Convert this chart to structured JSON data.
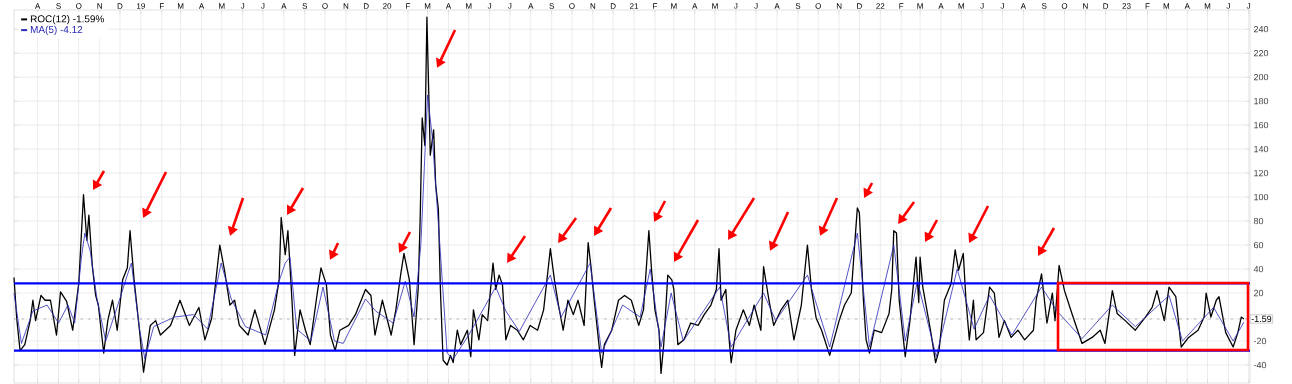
{
  "chart_data": {
    "type": "line",
    "legend": "top left",
    "grid": true,
    "xlim": [
      "2018-06-27",
      "2023-07-03"
    ],
    "ylim": [
      -55,
      256
    ],
    "yticks": [
      -40,
      -20,
      20,
      40,
      60,
      80,
      100,
      120,
      140,
      160,
      180,
      200,
      220,
      240
    ],
    "xticks": [
      {
        "value": "2018-08-01",
        "label": "A"
      },
      {
        "value": "2018-09-01",
        "label": "S"
      },
      {
        "value": "2018-10-01",
        "label": "O"
      },
      {
        "value": "2018-11-01",
        "label": "N"
      },
      {
        "value": "2018-12-01",
        "label": "D"
      },
      {
        "value": "2019-01-01",
        "label": "19"
      },
      {
        "value": "2019-02-01",
        "label": "F"
      },
      {
        "value": "2019-03-01",
        "label": "M"
      },
      {
        "value": "2019-04-01",
        "label": "A"
      },
      {
        "value": "2019-05-01",
        "label": "M"
      },
      {
        "value": "2019-06-01",
        "label": "J"
      },
      {
        "value": "2019-07-01",
        "label": "J"
      },
      {
        "value": "2019-08-01",
        "label": "A"
      },
      {
        "value": "2019-09-01",
        "label": "S"
      },
      {
        "value": "2019-10-01",
        "label": "O"
      },
      {
        "value": "2019-11-01",
        "label": "N"
      },
      {
        "value": "2019-12-01",
        "label": "D"
      },
      {
        "value": "2020-01-01",
        "label": "20"
      },
      {
        "value": "2020-02-01",
        "label": "F"
      },
      {
        "value": "2020-03-01",
        "label": "M"
      },
      {
        "value": "2020-04-01",
        "label": "A"
      },
      {
        "value": "2020-05-01",
        "label": "M"
      },
      {
        "value": "2020-06-01",
        "label": "J"
      },
      {
        "value": "2020-07-01",
        "label": "J"
      },
      {
        "value": "2020-08-01",
        "label": "A"
      },
      {
        "value": "2020-09-01",
        "label": "S"
      },
      {
        "value": "2020-10-01",
        "label": "O"
      },
      {
        "value": "2020-11-01",
        "label": "N"
      },
      {
        "value": "2020-12-01",
        "label": "D"
      },
      {
        "value": "2021-01-01",
        "label": "21"
      },
      {
        "value": "2021-02-01",
        "label": "F"
      },
      {
        "value": "2021-03-01",
        "label": "M"
      },
      {
        "value": "2021-04-01",
        "label": "A"
      },
      {
        "value": "2021-05-01",
        "label": "M"
      },
      {
        "value": "2021-06-01",
        "label": "J"
      },
      {
        "value": "2021-07-01",
        "label": "J"
      },
      {
        "value": "2021-08-01",
        "label": "A"
      },
      {
        "value": "2021-09-01",
        "label": "S"
      },
      {
        "value": "2021-10-01",
        "label": "O"
      },
      {
        "value": "2021-11-01",
        "label": "N"
      },
      {
        "value": "2021-12-01",
        "label": "D"
      },
      {
        "value": "2022-01-01",
        "label": "22"
      },
      {
        "value": "2022-02-01",
        "label": "F"
      },
      {
        "value": "2022-03-01",
        "label": "M"
      },
      {
        "value": "2022-04-01",
        "label": "A"
      },
      {
        "value": "2022-05-01",
        "label": "M"
      },
      {
        "value": "2022-06-01",
        "label": "J"
      },
      {
        "value": "2022-07-01",
        "label": "J"
      },
      {
        "value": "2022-08-01",
        "label": "A"
      },
      {
        "value": "2022-09-01",
        "label": "S"
      },
      {
        "value": "2022-10-01",
        "label": "O"
      },
      {
        "value": "2022-11-01",
        "label": "N"
      },
      {
        "value": "2022-12-01",
        "label": "D"
      },
      {
        "value": "2023-01-01",
        "label": "23"
      },
      {
        "value": "2023-02-01",
        "label": "F"
      },
      {
        "value": "2023-03-01",
        "label": "M"
      },
      {
        "value": "2023-04-01",
        "label": "A"
      },
      {
        "value": "2023-05-01",
        "label": "M"
      },
      {
        "value": "2023-06-01",
        "label": "J"
      },
      {
        "value": "2023-07-01",
        "label": "J"
      }
    ],
    "ref_lines": [
      {
        "axis": "y",
        "value": 28,
        "color": "#0000ff",
        "line_style": "solid"
      },
      {
        "axis": "y",
        "value": -28,
        "color": "#0000ff",
        "line_style": "solid"
      },
      {
        "axis": "y",
        "value": -1.59,
        "label": "-1.59",
        "color": "#808080",
        "line_style": "dashed"
      }
    ],
    "series": [
      {
        "name": "ROC(12) -1.59%",
        "color": "#000000",
        "x": [
          "2018-06-27",
          "2018-07-01",
          "2018-07-06",
          "2018-07-13",
          "2018-07-21",
          "2018-07-25",
          "2018-07-29",
          "2018-08-06",
          "2018-08-12",
          "2018-08-20",
          "2018-08-29",
          "2018-09-04",
          "2018-09-13",
          "2018-09-22",
          "2018-10-01",
          "2018-10-08",
          "2018-10-13",
          "2018-10-16",
          "2018-10-21",
          "2018-10-26",
          "2018-10-30",
          "2018-11-07",
          "2018-11-13",
          "2018-11-20",
          "2018-11-27",
          "2018-12-05",
          "2018-12-12",
          "2018-12-16",
          "2018-12-22",
          "2018-12-30",
          "2019-01-05",
          "2019-01-15",
          "2019-01-23",
          "2019-01-30",
          "2019-02-14",
          "2019-02-28",
          "2019-03-14",
          "2019-03-28",
          "2019-04-06",
          "2019-04-16",
          "2019-04-28",
          "2019-05-05",
          "2019-05-13",
          "2019-05-20",
          "2019-05-27",
          "2019-06-09",
          "2019-06-19",
          "2019-07-04",
          "2019-07-18",
          "2019-07-25",
          "2019-07-28",
          "2019-08-03",
          "2019-08-07",
          "2019-08-13",
          "2019-08-17",
          "2019-08-25",
          "2019-09-02",
          "2019-09-09",
          "2019-09-18",
          "2019-09-25",
          "2019-10-03",
          "2019-10-09",
          "2019-10-16",
          "2019-10-23",
          "2019-11-05",
          "2019-11-15",
          "2019-11-30",
          "2019-12-08",
          "2019-12-14",
          "2019-12-25",
          "2020-01-07",
          "2020-01-14",
          "2020-01-21",
          "2020-01-26",
          "2020-02-03",
          "2020-02-10",
          "2020-02-16",
          "2020-02-19",
          "2020-02-22",
          "2020-02-26",
          "2020-02-29",
          "2020-03-03",
          "2020-03-05",
          "2020-03-10",
          "2020-03-13",
          "2020-03-17",
          "2020-03-20",
          "2020-03-24",
          "2020-03-30",
          "2020-04-04",
          "2020-04-08",
          "2020-04-14",
          "2020-04-19",
          "2020-04-29",
          "2020-05-04",
          "2020-05-08",
          "2020-05-16",
          "2020-05-21",
          "2020-05-29",
          "2020-06-06",
          "2020-06-10",
          "2020-06-15",
          "2020-06-20",
          "2020-06-25",
          "2020-07-02",
          "2020-07-12",
          "2020-07-21",
          "2020-07-31",
          "2020-08-11",
          "2020-08-20",
          "2020-08-30",
          "2020-09-05",
          "2020-09-11",
          "2020-09-18",
          "2020-09-25",
          "2020-10-03",
          "2020-10-10",
          "2020-10-19",
          "2020-10-25",
          "2020-10-29",
          "2020-11-03",
          "2020-11-11",
          "2020-11-14",
          "2020-11-18",
          "2020-11-29",
          "2020-12-09",
          "2020-12-18",
          "2020-12-28",
          "2021-01-08",
          "2021-01-15",
          "2021-01-23",
          "2021-01-27",
          "2021-02-01",
          "2021-02-07",
          "2021-02-10",
          "2021-02-14",
          "2021-02-20",
          "2021-02-26",
          "2021-03-01",
          "2021-03-07",
          "2021-03-16",
          "2021-03-26",
          "2021-04-06",
          "2021-04-15",
          "2021-04-25",
          "2021-05-03",
          "2021-05-07",
          "2021-05-10",
          "2021-05-17",
          "2021-05-22",
          "2021-05-25",
          "2021-06-01",
          "2021-06-12",
          "2021-06-21",
          "2021-06-28",
          "2021-07-08",
          "2021-07-12",
          "2021-07-20",
          "2021-07-27",
          "2021-08-07",
          "2021-08-17",
          "2021-08-26",
          "2021-09-06",
          "2021-09-15",
          "2021-09-21",
          "2021-09-28",
          "2021-10-06",
          "2021-10-18",
          "2021-11-01",
          "2021-11-09",
          "2021-11-19",
          "2021-11-24",
          "2021-11-28",
          "2021-12-01",
          "2021-12-07",
          "2021-12-11",
          "2021-12-16",
          "2021-12-23",
          "2022-01-03",
          "2022-01-14",
          "2022-01-18",
          "2022-01-21",
          "2022-01-25",
          "2022-01-29",
          "2022-02-07",
          "2022-02-14",
          "2022-02-20",
          "2022-02-23",
          "2022-02-27",
          "2022-03-01",
          "2022-03-05",
          "2022-03-17",
          "2022-03-24",
          "2022-03-29",
          "2022-04-06",
          "2022-04-16",
          "2022-04-22",
          "2022-04-27",
          "2022-05-04",
          "2022-05-08",
          "2022-05-13",
          "2022-05-19",
          "2022-05-23",
          "2022-06-03",
          "2022-06-12",
          "2022-06-19",
          "2022-06-26",
          "2022-07-04",
          "2022-07-14",
          "2022-07-24",
          "2022-08-03",
          "2022-08-16",
          "2022-08-20",
          "2022-08-28",
          "2022-09-05",
          "2022-09-13",
          "2022-09-17",
          "2022-09-23",
          "2022-10-01",
          "2022-10-12",
          "2022-10-27",
          "2022-11-11",
          "2022-11-23",
          "2022-11-30",
          "2022-12-11",
          "2022-12-18",
          "2022-12-30",
          "2023-01-14",
          "2023-01-29",
          "2023-02-08",
          "2023-02-15",
          "2023-02-26",
          "2023-03-05",
          "2023-03-15",
          "2023-03-23",
          "2023-04-03",
          "2023-04-17",
          "2023-04-26",
          "2023-04-29",
          "2023-05-06",
          "2023-05-14",
          "2023-05-18",
          "2023-05-28",
          "2023-06-08",
          "2023-06-15",
          "2023-06-20",
          "2023-06-24"
        ],
        "values": [
          33,
          -1,
          -28,
          -23,
          -3,
          14,
          -3,
          18,
          14,
          14,
          -15,
          21,
          13,
          -11,
          28,
          102,
          64,
          85,
          43,
          18,
          10,
          -30,
          -3,
          14,
          -11,
          31,
          41,
          72,
          31,
          -11,
          -46,
          -7,
          -3,
          -15,
          -7,
          14,
          -7,
          8,
          -19,
          -1,
          60,
          39,
          10,
          14,
          -7,
          -15,
          6,
          -23,
          6,
          31,
          83,
          52,
          72,
          14,
          -32,
          6,
          -11,
          -23,
          14,
          41,
          27,
          -15,
          -28,
          -11,
          -7,
          2,
          23,
          18,
          -15,
          14,
          -15,
          6,
          35,
          53,
          31,
          -23,
          23,
          81,
          166,
          143,
          250,
          181,
          135,
          156,
          110,
          90,
          23,
          -36,
          -40,
          -32,
          -38,
          -11,
          -23,
          -11,
          -33,
          6,
          -19,
          2,
          -3,
          45,
          23,
          35,
          27,
          -19,
          -7,
          -11,
          -19,
          -7,
          -11,
          6,
          57,
          31,
          10,
          -11,
          14,
          2,
          14,
          -7,
          62,
          43,
          14,
          -28,
          -42,
          -23,
          -11,
          14,
          18,
          14,
          -7,
          6,
          72,
          39,
          6,
          -11,
          -47,
          -23,
          35,
          31,
          23,
          -23,
          -19,
          -5,
          -7,
          2,
          10,
          23,
          57,
          14,
          23,
          -19,
          -38,
          -11,
          6,
          -7,
          10,
          -11,
          42,
          14,
          -7,
          6,
          14,
          -19,
          10,
          60,
          23,
          -1,
          -11,
          -32,
          -3,
          10,
          20,
          60,
          91,
          87,
          14,
          -19,
          -30,
          -11,
          -13,
          3,
          23,
          72,
          70,
          14,
          -33,
          -3,
          33,
          50,
          12,
          50,
          25,
          -13,
          -38,
          -28,
          14,
          28,
          56,
          39,
          53,
          14,
          -19,
          14,
          -19,
          -13,
          25,
          20,
          -17,
          -3,
          -17,
          -11,
          -19,
          -11,
          14,
          36,
          -5,
          20,
          -3,
          43,
          22,
          3,
          -22,
          -17,
          -11,
          -22,
          22,
          3,
          -3,
          -11,
          0,
          8,
          22,
          -3,
          25,
          17,
          -25,
          -17,
          -11,
          0,
          20,
          0,
          14,
          17,
          -13,
          -25,
          -13,
          0,
          -1.59
        ]
      },
      {
        "name": "MA(5) -4.12",
        "color": "#2a2ab8",
        "x": [
          "2018-06-27",
          "2018-07-08",
          "2018-07-25",
          "2018-08-15",
          "2018-09-01",
          "2018-09-15",
          "2018-09-25",
          "2018-10-05",
          "2018-10-10",
          "2018-10-18",
          "2018-10-28",
          "2018-11-10",
          "2018-11-25",
          "2018-12-12",
          "2018-12-18",
          "2018-12-30",
          "2019-01-07",
          "2019-01-20",
          "2019-02-20",
          "2019-03-20",
          "2019-04-10",
          "2019-04-30",
          "2019-05-15",
          "2019-06-05",
          "2019-07-05",
          "2019-07-25",
          "2019-08-03",
          "2019-08-10",
          "2019-08-20",
          "2019-09-10",
          "2019-09-28",
          "2019-10-15",
          "2019-10-28",
          "2019-11-30",
          "2019-12-15",
          "2020-01-10",
          "2020-01-28",
          "2020-02-10",
          "2020-02-20",
          "2020-03-01",
          "2020-03-08",
          "2020-03-18",
          "2020-03-30",
          "2020-04-08",
          "2020-05-01",
          "2020-06-10",
          "2020-06-25",
          "2020-07-15",
          "2020-08-30",
          "2020-09-15",
          "2020-10-28",
          "2020-11-14",
          "2020-12-15",
          "2021-01-10",
          "2021-01-25",
          "2021-02-10",
          "2021-02-25",
          "2021-03-15",
          "2021-05-08",
          "2021-05-25",
          "2021-07-12",
          "2021-07-30",
          "2021-09-15",
          "2021-10-18",
          "2021-11-28",
          "2021-12-16",
          "2022-01-21",
          "2022-02-07",
          "2022-02-25",
          "2022-03-25",
          "2022-04-25",
          "2022-05-20",
          "2022-06-12",
          "2022-07-15",
          "2022-08-28",
          "2022-09-20",
          "2022-10-27",
          "2022-12-11",
          "2023-01-14",
          "2023-03-05",
          "2023-03-25",
          "2023-05-10",
          "2023-06-08",
          "2023-06-24"
        ],
        "values": [
          20,
          -22,
          5,
          10,
          -5,
          10,
          -5,
          50,
          70,
          55,
          15,
          -20,
          5,
          35,
          45,
          -10,
          -35,
          -8,
          0,
          2,
          -10,
          45,
          15,
          -8,
          -15,
          30,
          45,
          50,
          -10,
          -20,
          25,
          -20,
          -22,
          15,
          5,
          -5,
          30,
          0,
          60,
          185,
          150,
          70,
          -30,
          -35,
          -15,
          25,
          5,
          -12,
          35,
          0,
          45,
          -30,
          10,
          0,
          40,
          -25,
          20,
          -20,
          25,
          -25,
          20,
          -3,
          35,
          -25,
          70,
          -25,
          60,
          -20,
          30,
          -33,
          40,
          -10,
          18,
          -15,
          25,
          5,
          -18,
          10,
          -8,
          18,
          -20,
          8,
          -20,
          -4.12
        ]
      }
    ]
  }
}
